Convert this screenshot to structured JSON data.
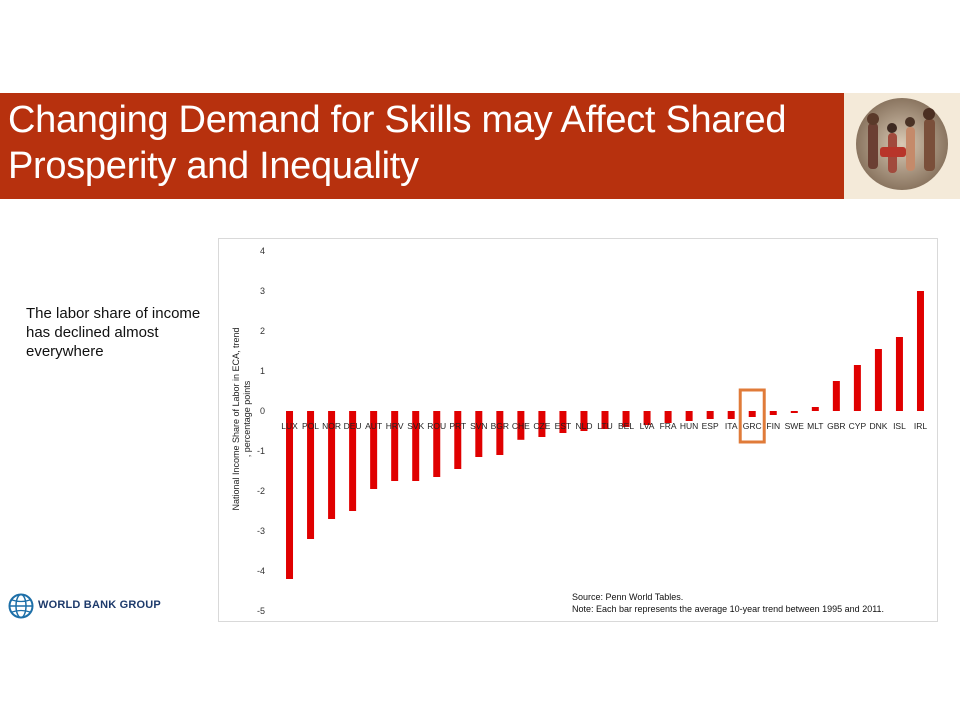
{
  "slide": {
    "title": "Changing Demand for Skills may Affect Shared Prosperity and Inequality",
    "side_text": "The labor share of income has declined almost everywhere",
    "logo_text": "WORLD BANK GROUP",
    "colors": {
      "title_bar": "#b7310e",
      "bar": "#e00000",
      "highlight": "#e07b39"
    }
  },
  "chart_data": {
    "type": "bar",
    "categories": [
      "LUX",
      "POL",
      "NOR",
      "DEU",
      "AUT",
      "HRV",
      "SVK",
      "ROU",
      "PRT",
      "SVN",
      "BGR",
      "CHE",
      "CZE",
      "EST",
      "NLD",
      "LTU",
      "BEL",
      "LVA",
      "FRA",
      "HUN",
      "ESP",
      "ITA",
      "GRC",
      "FIN",
      "SWE",
      "MLT",
      "GBR",
      "CYP",
      "DNK",
      "ISL",
      "IRL"
    ],
    "values": [
      -4.2,
      -3.2,
      -2.7,
      -2.5,
      -1.95,
      -1.75,
      -1.75,
      -1.65,
      -1.45,
      -1.15,
      -1.1,
      -0.72,
      -0.65,
      -0.55,
      -0.5,
      -0.45,
      -0.4,
      -0.35,
      -0.3,
      -0.25,
      -0.2,
      -0.2,
      -0.15,
      -0.1,
      -0.05,
      0.1,
      0.75,
      1.15,
      1.55,
      1.85,
      3.0
    ],
    "ylabel": "National Income Share of Labor in ECA, trend\n, percentage points",
    "ylim": [
      -5,
      4
    ],
    "yticks": [
      4,
      3,
      2,
      1,
      0,
      -1,
      -2,
      -3,
      -4,
      -5
    ],
    "grid": false,
    "highlight_category": "GRC",
    "source": "Source: Penn World Tables.",
    "note": "Note: Each bar represents the average 10-year trend between 1995 and 2011."
  }
}
